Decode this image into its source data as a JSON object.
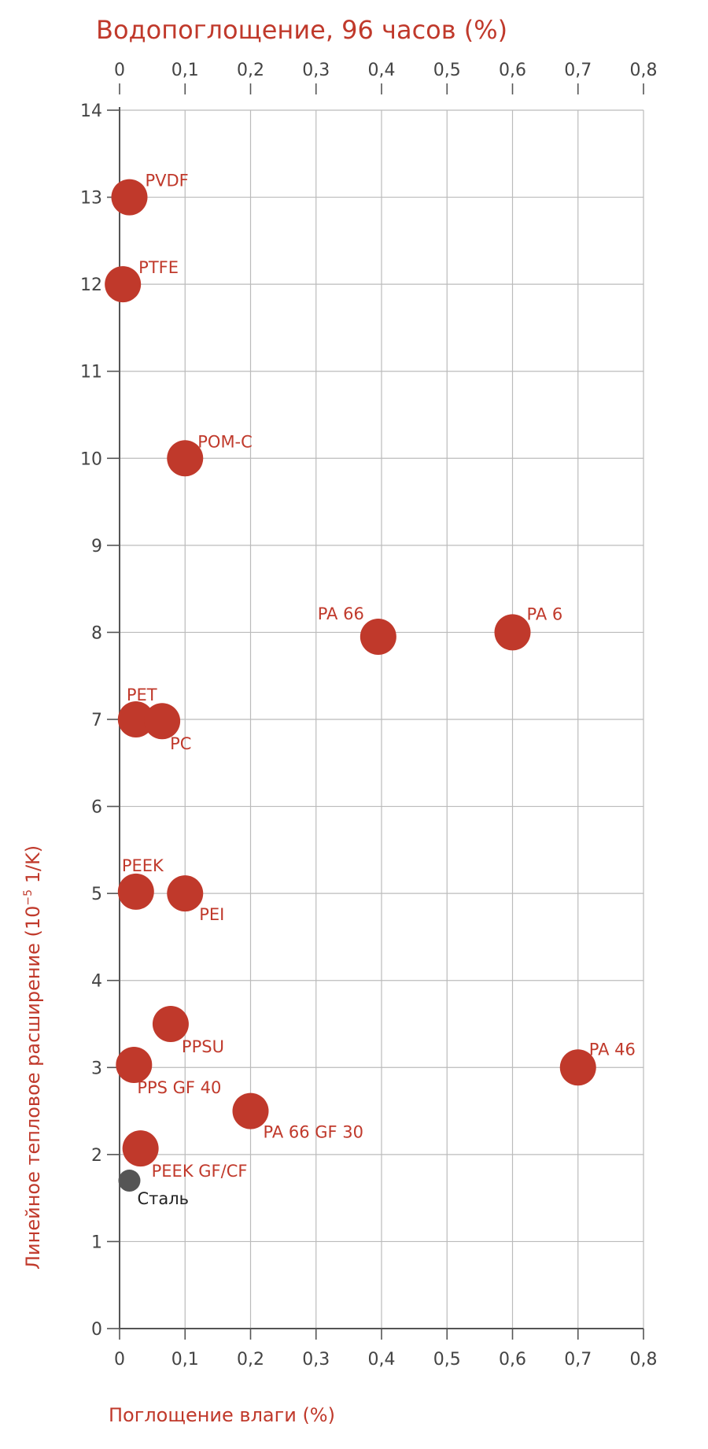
{
  "chart_data": {
    "type": "scatter",
    "title": "Водопоглощение, 96 часов (%)",
    "xlabel": "Поглощение влаги (%)",
    "ylabel": "Линейное тепловое расширение (10",
    "ylabel_sup": "−5",
    "ylabel_suffix": " 1/K)",
    "xlim": [
      0,
      0.8
    ],
    "ylim": [
      0,
      14
    ],
    "x_ticks": [
      "0",
      "0,1",
      "0,2",
      "0,3",
      "0,4",
      "0,5",
      "0,6",
      "0,7",
      "0,8"
    ],
    "y_ticks": [
      "0",
      "1",
      "2",
      "3",
      "4",
      "5",
      "6",
      "7",
      "8",
      "9",
      "10",
      "11",
      "12",
      "13",
      "14"
    ],
    "grid": true,
    "colors": {
      "primary": "#c0392b",
      "steel": "#555555",
      "grid": "#bbbbbb",
      "axis": "#555555"
    },
    "points": [
      {
        "label": "PVDF",
        "x": 0.015,
        "y": 13.0,
        "color": "#c0392b"
      },
      {
        "label": "PTFE",
        "x": 0.005,
        "y": 12.0,
        "color": "#c0392b"
      },
      {
        "label": "POM-C",
        "x": 0.1,
        "y": 10.0,
        "color": "#c0392b"
      },
      {
        "label": "PA 66",
        "x": 0.395,
        "y": 7.95,
        "color": "#c0392b"
      },
      {
        "label": "PA 6",
        "x": 0.6,
        "y": 8.0,
        "color": "#c0392b"
      },
      {
        "label": "PET",
        "x": 0.025,
        "y": 7.0,
        "color": "#c0392b"
      },
      {
        "label": "PC",
        "x": 0.065,
        "y": 6.98,
        "color": "#c0392b"
      },
      {
        "label": "PEEK",
        "x": 0.025,
        "y": 5.02,
        "color": "#c0392b"
      },
      {
        "label": "PEI",
        "x": 0.1,
        "y": 5.0,
        "color": "#c0392b"
      },
      {
        "label": "PPSU",
        "x": 0.078,
        "y": 3.5,
        "color": "#c0392b"
      },
      {
        "label": "PA 46",
        "x": 0.7,
        "y": 3.0,
        "color": "#c0392b"
      },
      {
        "label": "PPS GF 40",
        "x": 0.022,
        "y": 3.03,
        "color": "#c0392b"
      },
      {
        "label": "PA 66 GF 30",
        "x": 0.2,
        "y": 2.5,
        "color": "#c0392b"
      },
      {
        "label": "PEEK GF/CF",
        "x": 0.032,
        "y": 2.07,
        "color": "#c0392b"
      },
      {
        "label": "Сталь",
        "x": 0.015,
        "y": 1.7,
        "color": "#555555"
      }
    ]
  }
}
